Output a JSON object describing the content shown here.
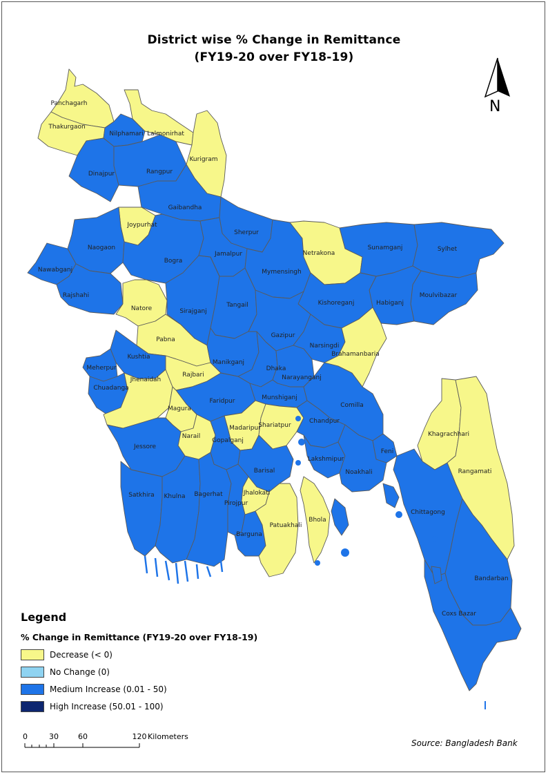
{
  "title_line1": "District wise % Change in Remittance",
  "title_line2": "(FY19-20 over FY18-19)",
  "north_label": "N",
  "colors": {
    "decrease": "#f7f78a",
    "no_change": "#8fd3f1",
    "medium": "#1e74e8",
    "high": "#0d2670",
    "border": "#5a5a5a"
  },
  "districts": [
    {
      "name": "Panchagarh",
      "class": "decrease"
    },
    {
      "name": "Thakurgaon",
      "class": "decrease"
    },
    {
      "name": "Nilphamari",
      "class": "medium"
    },
    {
      "name": "Lalmonirhat",
      "class": "decrease"
    },
    {
      "name": "Kurigram",
      "class": "decrease"
    },
    {
      "name": "Dinajpur",
      "class": "medium"
    },
    {
      "name": "Rangpur",
      "class": "medium"
    },
    {
      "name": "Gaibandha",
      "class": "medium"
    },
    {
      "name": "Joypurhat",
      "class": "decrease"
    },
    {
      "name": "Naogaon",
      "class": "medium"
    },
    {
      "name": "Nawabganj",
      "class": "medium"
    },
    {
      "name": "Bogra",
      "class": "medium"
    },
    {
      "name": "Rajshahi",
      "class": "medium"
    },
    {
      "name": "Natore",
      "class": "decrease"
    },
    {
      "name": "Sirajganj",
      "class": "medium"
    },
    {
      "name": "Pabna",
      "class": "decrease"
    },
    {
      "name": "Sherpur",
      "class": "medium"
    },
    {
      "name": "Jamalpur",
      "class": "medium"
    },
    {
      "name": "Mymensingh",
      "class": "medium"
    },
    {
      "name": "Netrakona",
      "class": "decrease"
    },
    {
      "name": "Sunamganj",
      "class": "medium"
    },
    {
      "name": "Sylhet",
      "class": "medium"
    },
    {
      "name": "Moulvibazar",
      "class": "medium"
    },
    {
      "name": "Habiganj",
      "class": "medium"
    },
    {
      "name": "Kishoreganj",
      "class": "medium"
    },
    {
      "name": "Tangail",
      "class": "medium"
    },
    {
      "name": "Gazipur",
      "class": "medium"
    },
    {
      "name": "Narsingdi",
      "class": "medium"
    },
    {
      "name": "Brahamanbaria",
      "class": "decrease"
    },
    {
      "name": "Kushtia",
      "class": "medium"
    },
    {
      "name": "Meherpur",
      "class": "medium"
    },
    {
      "name": "Chuadanga",
      "class": "medium"
    },
    {
      "name": "Jhenaidah",
      "class": "decrease"
    },
    {
      "name": "Rajbari",
      "class": "decrease"
    },
    {
      "name": "Manikganj",
      "class": "medium"
    },
    {
      "name": "Dhaka",
      "class": "medium"
    },
    {
      "name": "Narayanganj",
      "class": "medium"
    },
    {
      "name": "Faridpur",
      "class": "medium"
    },
    {
      "name": "Magura",
      "class": "decrease"
    },
    {
      "name": "Munshiganj",
      "class": "medium"
    },
    {
      "name": "Comilla",
      "class": "medium"
    },
    {
      "name": "Madaripur",
      "class": "decrease"
    },
    {
      "name": "Shariatpur",
      "class": "decrease"
    },
    {
      "name": "Chandpur",
      "class": "medium"
    },
    {
      "name": "Narail",
      "class": "decrease"
    },
    {
      "name": "Gopalganj",
      "class": "medium"
    },
    {
      "name": "Jessore",
      "class": "medium"
    },
    {
      "name": "Khagrachhari",
      "class": "decrease"
    },
    {
      "name": "Rangamati",
      "class": "decrease"
    },
    {
      "name": "Lakshmipur",
      "class": "medium"
    },
    {
      "name": "Feni",
      "class": "medium"
    },
    {
      "name": "Noakhali",
      "class": "medium"
    },
    {
      "name": "Barisal",
      "class": "medium"
    },
    {
      "name": "Satkhira",
      "class": "medium"
    },
    {
      "name": "Khulna",
      "class": "medium"
    },
    {
      "name": "Bagerhat",
      "class": "medium"
    },
    {
      "name": "Jhalokati",
      "class": "decrease"
    },
    {
      "name": "Pirojpur",
      "class": "medium"
    },
    {
      "name": "Bhola",
      "class": "decrease"
    },
    {
      "name": "Patuakhali",
      "class": "decrease"
    },
    {
      "name": "Barguna",
      "class": "medium"
    },
    {
      "name": "Chittagong",
      "class": "medium"
    },
    {
      "name": "Bandarban",
      "class": "medium"
    },
    {
      "name": "Coxs Bazar",
      "class": "medium"
    }
  ],
  "legend": {
    "title": "Legend",
    "subtitle": "% Change in Remittance (FY19-20 over FY18-19)",
    "items": [
      {
        "label": "Decrease (< 0)",
        "color": "#f7f78a"
      },
      {
        "label": "No Change (0)",
        "color": "#8fd3f1"
      },
      {
        "label": "Medium Increase (0.01 - 50)",
        "color": "#1e74e8"
      },
      {
        "label": "High Increase (50.01 - 100)",
        "color": "#0d2670"
      }
    ]
  },
  "scale_bar": {
    "ticks": [
      "0",
      "30",
      "60",
      "120"
    ],
    "unit": "Kilometers"
  },
  "source": "Source: Bangladesh Bank"
}
